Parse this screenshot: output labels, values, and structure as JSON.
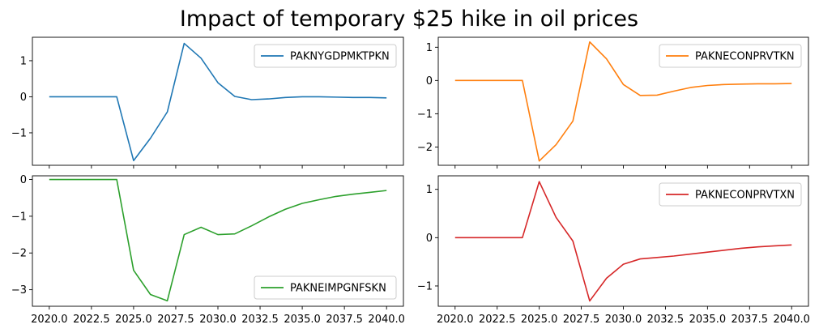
{
  "figure_title": "Impact of temporary $25 hike in oil prices",
  "chart_data": [
    {
      "type": "line",
      "series_name": "PAKNYGDPMKTPKN",
      "color": "#1f77b4",
      "legend_position": "top-right",
      "x": [
        2020,
        2021,
        2022,
        2023,
        2024,
        2025,
        2026,
        2027,
        2028,
        2029,
        2030,
        2031,
        2032,
        2033,
        2034,
        2035,
        2036,
        2037,
        2038,
        2039,
        2040
      ],
      "y": [
        0,
        0,
        0,
        0,
        0,
        -1.77,
        -1.15,
        -0.42,
        1.48,
        1.07,
        0.39,
        0.01,
        -0.08,
        -0.06,
        -0.02,
        0.0,
        0.0,
        -0.01,
        -0.02,
        -0.02,
        -0.03
      ],
      "ylim": [
        -1.9,
        1.65
      ],
      "yticks": [
        -1,
        0,
        1
      ],
      "ytick_labels": [
        "−1",
        "0",
        "1"
      ],
      "xlim": [
        2019.0,
        2041.0
      ],
      "xticks": [
        2020.0,
        2022.5,
        2025.0,
        2027.5,
        2030.0,
        2032.5,
        2035.0,
        2037.5,
        2040.0
      ],
      "xtick_labels": [],
      "grid": false
    },
    {
      "type": "line",
      "series_name": "PAKNECONPRVTKN",
      "color": "#ff7f0e",
      "legend_position": "top-right",
      "x": [
        2020,
        2021,
        2022,
        2023,
        2024,
        2025,
        2026,
        2027,
        2028,
        2029,
        2030,
        2031,
        2032,
        2033,
        2034,
        2035,
        2036,
        2037,
        2038,
        2039,
        2040
      ],
      "y": [
        0,
        0,
        0,
        0,
        0,
        -2.42,
        -1.93,
        -1.22,
        1.16,
        0.65,
        -0.12,
        -0.45,
        -0.44,
        -0.32,
        -0.21,
        -0.15,
        -0.12,
        -0.11,
        -0.1,
        -0.1,
        -0.09
      ],
      "ylim": [
        -2.55,
        1.3
      ],
      "yticks": [
        -2,
        -1,
        0,
        1
      ],
      "ytick_labels": [
        "−2",
        "−1",
        "0",
        "1"
      ],
      "xlim": [
        2019.0,
        2041.0
      ],
      "xticks": [
        2020.0,
        2022.5,
        2025.0,
        2027.5,
        2030.0,
        2032.5,
        2035.0,
        2037.5,
        2040.0
      ],
      "xtick_labels": [],
      "grid": false
    },
    {
      "type": "line",
      "series_name": "PAKNEIMPGNFSKN",
      "color": "#2ca02c",
      "legend_position": "bottom-right",
      "x": [
        2020,
        2021,
        2022,
        2023,
        2024,
        2025,
        2026,
        2027,
        2028,
        2029,
        2030,
        2031,
        2032,
        2033,
        2034,
        2035,
        2036,
        2037,
        2038,
        2039,
        2040
      ],
      "y": [
        0,
        0,
        0,
        0,
        0,
        -2.47,
        -3.13,
        -3.3,
        -1.5,
        -1.3,
        -1.5,
        -1.48,
        -1.26,
        -1.02,
        -0.81,
        -0.65,
        -0.55,
        -0.46,
        -0.4,
        -0.35,
        -0.3
      ],
      "ylim": [
        -3.45,
        0.1
      ],
      "yticks": [
        -3,
        -2,
        -1,
        0
      ],
      "ytick_labels": [
        "−3",
        "−2",
        "−1",
        "0"
      ],
      "xlim": [
        2019.0,
        2041.0
      ],
      "xticks": [
        2020.0,
        2022.5,
        2025.0,
        2027.5,
        2030.0,
        2032.5,
        2035.0,
        2037.5,
        2040.0
      ],
      "xtick_labels": [
        "2020.0",
        "2022.5",
        "2025.0",
        "2027.5",
        "2030.0",
        "2032.5",
        "2035.0",
        "2037.5",
        "2040.0"
      ],
      "grid": false
    },
    {
      "type": "line",
      "series_name": "PAKNECONPRVTXN",
      "color": "#d62728",
      "legend_position": "top-right",
      "x": [
        2020,
        2021,
        2022,
        2023,
        2024,
        2025,
        2026,
        2027,
        2028,
        2029,
        2030,
        2031,
        2032,
        2033,
        2034,
        2035,
        2036,
        2037,
        2038,
        2039,
        2040
      ],
      "y": [
        0,
        0,
        0,
        0,
        0,
        1.16,
        0.42,
        -0.07,
        -1.31,
        -0.84,
        -0.55,
        -0.44,
        -0.41,
        -0.38,
        -0.34,
        -0.3,
        -0.26,
        -0.22,
        -0.19,
        -0.17,
        -0.15
      ],
      "ylim": [
        -1.42,
        1.28
      ],
      "yticks": [
        -1,
        0,
        1
      ],
      "ytick_labels": [
        "−1",
        "0",
        "1"
      ],
      "xlim": [
        2019.0,
        2041.0
      ],
      "xticks": [
        2020.0,
        2022.5,
        2025.0,
        2027.5,
        2030.0,
        2032.5,
        2035.0,
        2037.5,
        2040.0
      ],
      "xtick_labels": [
        "2020.0",
        "2022.5",
        "2025.0",
        "2027.5",
        "2030.0",
        "2032.5",
        "2035.0",
        "2037.5",
        "2040.0"
      ],
      "grid": false
    }
  ]
}
